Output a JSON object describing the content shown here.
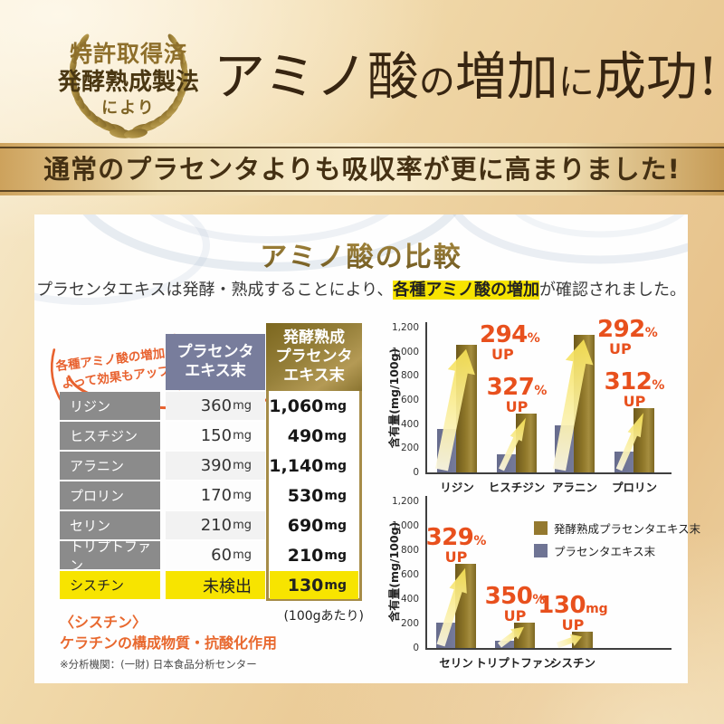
{
  "badge": {
    "line1": "特許取得済",
    "line2": "発酵熟成製法",
    "line3": "により"
  },
  "title_segments": [
    {
      "text": "アミノ酸",
      "size": "big"
    },
    {
      "text": "の",
      "size": "small"
    },
    {
      "text": "増加",
      "size": "big"
    },
    {
      "text": "に",
      "size": "small"
    },
    {
      "text": "成功!",
      "size": "big"
    }
  ],
  "banner": "通常のプラセンタよりも吸収率が更に高まりました!",
  "card": {
    "title": "アミノ酸の比較",
    "subtitle_prefix": "プラセンタエキスは発酵・熟成することにより、",
    "subtitle_highlight": "各種アミノ酸の増加",
    "subtitle_suffix": "が確認されました。",
    "callout": {
      "line1": "各種アミノ酸の増加に",
      "line2": "よって効果もアップ!"
    },
    "table": {
      "col_normal": "プラセンタ\nエキス末",
      "col_fermented": "発酵熟成\nプラセンタ\nエキス末",
      "rows": [
        {
          "name": "リジン",
          "normal_value": "360",
          "normal_unit": "mg",
          "fermented_value": "1,060",
          "fermented_unit": "mg",
          "highlight": false
        },
        {
          "name": "ヒスチジン",
          "normal_value": "150",
          "normal_unit": "mg",
          "fermented_value": "490",
          "fermented_unit": "mg",
          "highlight": false
        },
        {
          "name": "アラニン",
          "normal_value": "390",
          "normal_unit": "mg",
          "fermented_value": "1,140",
          "fermented_unit": "mg",
          "highlight": false
        },
        {
          "name": "プロリン",
          "normal_value": "170",
          "normal_unit": "mg",
          "fermented_value": "530",
          "fermented_unit": "mg",
          "highlight": false
        },
        {
          "name": "セリン",
          "normal_value": "210",
          "normal_unit": "mg",
          "fermented_value": "690",
          "fermented_unit": "mg",
          "highlight": false
        },
        {
          "name": "トリプトファン",
          "normal_value": "60",
          "normal_unit": "mg",
          "fermented_value": "210",
          "fermented_unit": "mg",
          "highlight": false
        },
        {
          "name": "シスチン",
          "normal_value": "未検出",
          "normal_unit": "",
          "fermented_value": "130",
          "fermented_unit": "mg",
          "highlight": true
        }
      ],
      "per_note": "(100gあたり)"
    },
    "notes": {
      "cystine_title": "〈シスチン〉",
      "cystine_desc": "ケラチンの構成物質・抗酸化作用",
      "agency": "※分析機関：(一財) 日本食品分析センター"
    }
  },
  "chart_data": [
    {
      "type": "bar",
      "title": "",
      "ylabel": "含有量(mg/100g)",
      "xlabel": "",
      "ylim": [
        0,
        1200
      ],
      "yticks": [
        "0",
        "200",
        "400",
        "600",
        "800",
        "1,000",
        "1,200"
      ],
      "grid": false,
      "categories": [
        "リジン",
        "ヒスチジン",
        "アラニン",
        "プロリン"
      ],
      "series": [
        {
          "name": "プラセンタエキス末",
          "color": "#6f7494",
          "values": [
            360,
            150,
            390,
            170
          ]
        },
        {
          "name": "発酵熟成プラセンタエキス末",
          "color": "#94792f",
          "values": [
            1060,
            490,
            1140,
            530
          ]
        }
      ],
      "annotations": [
        {
          "big": "294",
          "unit": "%",
          "word": "UP",
          "placement": "right"
        },
        {
          "big": "327",
          "unit": "%",
          "word": "UP",
          "placement": "above"
        },
        {
          "big": "292",
          "unit": "%",
          "word": "UP",
          "placement": "right"
        },
        {
          "big": "312",
          "unit": "%",
          "word": "UP",
          "placement": "above"
        }
      ],
      "legend": null
    },
    {
      "type": "bar",
      "title": "",
      "ylabel": "含有量(mg/100g)",
      "xlabel": "",
      "ylim": [
        0,
        1200
      ],
      "yticks": [
        "0",
        "200",
        "400",
        "600",
        "800",
        "1,000",
        "1,200"
      ],
      "grid": false,
      "categories": [
        "セリン",
        "トリプトファン",
        "シスチン"
      ],
      "series": [
        {
          "name": "プラセンタエキス末",
          "color": "#6f7494",
          "values": [
            210,
            60,
            0
          ]
        },
        {
          "name": "発酵熟成プラセンタエキス末",
          "color": "#94792f",
          "values": [
            690,
            210,
            130
          ]
        }
      ],
      "annotations": [
        {
          "big": "329",
          "unit": "%",
          "word": "UP",
          "placement": "above"
        },
        {
          "big": "350",
          "unit": "%",
          "word": "UP",
          "placement": "above"
        },
        {
          "big": "130",
          "unit": "mg",
          "word": "UP",
          "placement": "above"
        }
      ],
      "legend": {
        "position": "top-right",
        "entries": [
          {
            "label": "発酵熟成プラセンタエキス末",
            "color": "#94792f"
          },
          {
            "label": "プラセンタエキス末",
            "color": "#6f7494"
          }
        ]
      }
    }
  ],
  "colors": {
    "accent_orange": "#e8501d",
    "gold_dark": "#7c671f",
    "gold_light": "#b49a55",
    "slate": "#6f7494",
    "highlight_yellow": "#f7e400",
    "title_brown": "#372511",
    "label_gray": "#8b8b8b"
  }
}
